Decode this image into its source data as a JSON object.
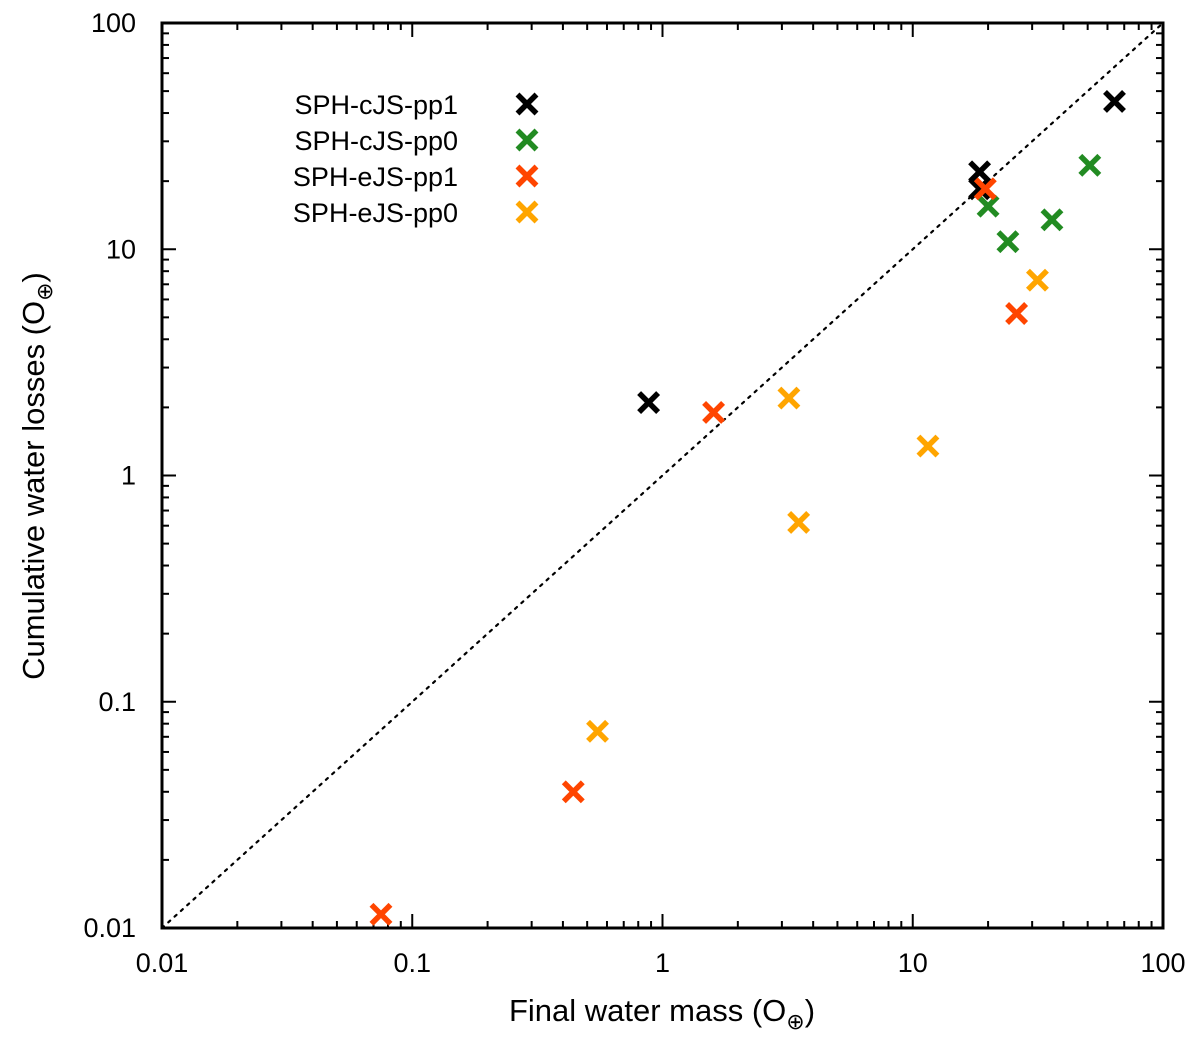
{
  "chart_data": {
    "type": "scatter",
    "title": "",
    "xlabel": "Final water mass (O",
    "ylabel": "Cumulative water losses (O",
    "unit_subscript": "⊕",
    "unit_close": ")",
    "xscale": "log",
    "yscale": "log",
    "xlim": [
      0.01,
      100
    ],
    "ylim": [
      0.01,
      100
    ],
    "x_ticks": [
      0.01,
      0.1,
      1,
      10,
      100
    ],
    "y_ticks": [
      0.01,
      0.1,
      1,
      10,
      100
    ],
    "x_tick_labels": [
      "0.01",
      "0.1",
      "1",
      "10",
      "100"
    ],
    "y_tick_labels": [
      "0.01",
      "0.1",
      "1",
      "10",
      "100"
    ],
    "legend_position": "top-left",
    "reference_line": "y = x (dotted)",
    "series": [
      {
        "name": "SPH-cJS-pp1",
        "color": "#000000",
        "points": [
          [
            0.88,
            2.1
          ],
          [
            18.5,
            22.0
          ],
          [
            18.5,
            18.5
          ],
          [
            64.0,
            45.0
          ]
        ]
      },
      {
        "name": "SPH-cJS-pp0",
        "color": "#228b22",
        "points": [
          [
            20.0,
            15.5
          ],
          [
            24.0,
            10.8
          ],
          [
            36.0,
            13.5
          ],
          [
            51.0,
            23.5
          ]
        ]
      },
      {
        "name": "SPH-eJS-pp1",
        "color": "#ff4500",
        "points": [
          [
            0.075,
            0.0115
          ],
          [
            0.44,
            0.04
          ],
          [
            1.6,
            1.9
          ],
          [
            19.5,
            18.5
          ],
          [
            26.0,
            5.2
          ]
        ]
      },
      {
        "name": "SPH-eJS-pp0",
        "color": "#ffa500",
        "points": [
          [
            0.55,
            0.074
          ],
          [
            3.2,
            2.2
          ],
          [
            3.5,
            0.62
          ],
          [
            11.5,
            1.35
          ],
          [
            31.5,
            7.3
          ]
        ]
      }
    ]
  }
}
